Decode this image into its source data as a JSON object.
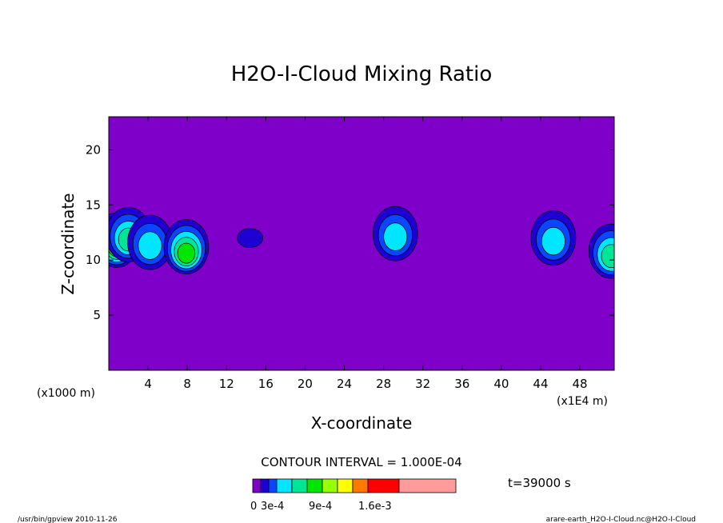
{
  "chart_data": {
    "type": "contour",
    "title": "H2O-I-Cloud Mixing Ratio",
    "xlabel": "X-coordinate",
    "ylabel": "Z-coordinate",
    "x_ticks": [
      "4",
      "8",
      "12",
      "16",
      "20",
      "24",
      "28",
      "32",
      "36",
      "40",
      "44",
      "48"
    ],
    "y_ticks": [
      "5",
      "10",
      "15",
      "20"
    ],
    "xlim": [
      0,
      51.5
    ],
    "ylim": [
      0,
      23
    ],
    "x_unit_left": "(x1000 m)",
    "x_unit_right": "(x1E4 m)",
    "contour_interval": "CONTOUR INTERVAL = 1.000E-04",
    "time": "t=39000 s",
    "colorbar": {
      "labels": [
        "0",
        "3e-4",
        "9e-4",
        "1.6e-3"
      ],
      "colors": [
        "#7f00c8",
        "#1e00d2",
        "#0a46ff",
        "#00e6ff",
        "#00e696",
        "#00e600",
        "#96ff00",
        "#ffff00",
        "#ff7800",
        "#ff0000",
        "#ff9b9b"
      ],
      "values": [
        0,
        0.0001,
        0.0002,
        0.0003,
        0.0004,
        0.0006,
        0.0009,
        0.0012,
        0.0016,
        0.002,
        0.0025,
        0.003
      ]
    },
    "cloud_cells": [
      {
        "x": 0.8,
        "z": 11.8,
        "peak": 0.0006
      },
      {
        "x": 2.0,
        "z": 12.3,
        "peak": 0.0004
      },
      {
        "x": 4.2,
        "z": 11.6,
        "peak": 0.0003
      },
      {
        "x": 7.9,
        "z": 11.2,
        "peak": 0.0006
      },
      {
        "x": 14.4,
        "z": 12.0,
        "peak": 0.0001
      },
      {
        "x": 29.2,
        "z": 12.4,
        "peak": 0.0003
      },
      {
        "x": 45.3,
        "z": 12.0,
        "peak": 0.0003
      },
      {
        "x": 51.2,
        "z": 10.8,
        "peak": 0.0004
      }
    ],
    "colors": {
      "background_field": "#7f00c8",
      "axis": "#000000"
    }
  },
  "footer": {
    "left": "/usr/bin/gpview  2010-11-26",
    "right": "arare-earth_H2O-I-Cloud.nc@H2O-I-Cloud"
  }
}
